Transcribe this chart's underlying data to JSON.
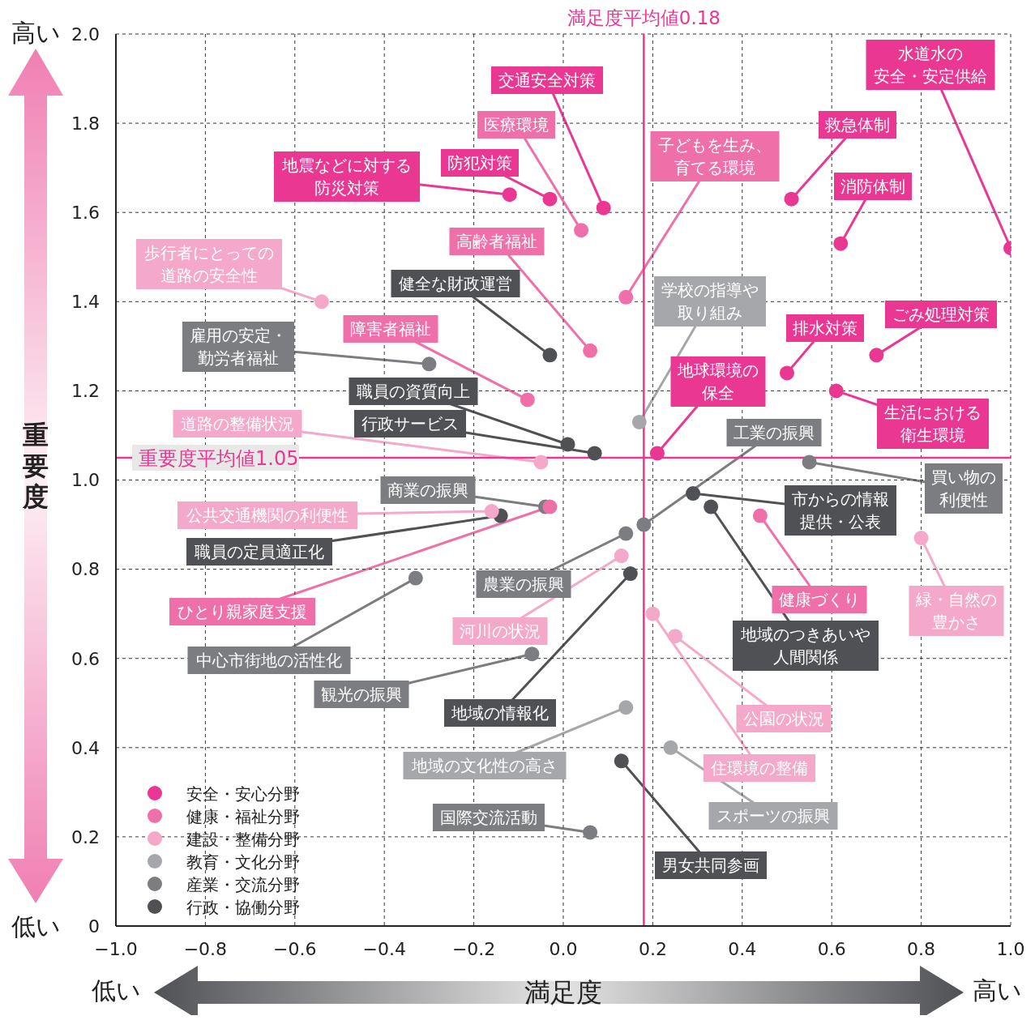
{
  "chart_data": {
    "type": "scatter",
    "xlabel": "満足度",
    "ylabel": "重要度",
    "xlim": [
      -1,
      1
    ],
    "ylim": [
      0,
      2
    ],
    "xticks": [
      {
        "value": -1,
        "label": "−1.0"
      },
      {
        "value": -0.8,
        "label": "−0.8"
      },
      {
        "value": -0.6,
        "label": "−0.6"
      },
      {
        "value": -0.4,
        "label": "−0.4"
      },
      {
        "value": -0.2,
        "label": "−0.2"
      },
      {
        "value": 0,
        "label": "0.0"
      },
      0.2,
      0.4,
      0.6,
      0.8,
      {
        "value": 1,
        "label": "1.0"
      }
    ],
    "yticks": [
      0,
      0.2,
      0.4,
      0.6,
      0.8,
      {
        "value": 1,
        "label": "1.0"
      },
      1.2,
      1.4,
      1.6,
      1.8,
      {
        "value": 2,
        "label": "2.0"
      }
    ],
    "grid": true,
    "legend": "bottom left",
    "marker": "circle",
    "series": [
      {
        "name": "安全・安心分野",
        "color": "#ea3892",
        "x": [
          0.09,
          -0.12,
          -0.03,
          1.0,
          0.51,
          0.62,
          0.5,
          0.7,
          0.21,
          0.61
        ],
        "values": [
          1.61,
          1.64,
          1.63,
          1.52,
          1.63,
          1.53,
          1.24,
          1.28,
          1.06,
          1.2
        ]
      },
      {
        "name": "健康・福祉分野",
        "color": "#ef6fa9",
        "x": [
          0.04,
          0.14,
          0.06,
          -0.08,
          -0.03,
          0.44
        ],
        "values": [
          1.56,
          1.41,
          1.29,
          1.18,
          0.94,
          0.92
        ]
      },
      {
        "name": "建設・整備分野",
        "color": "#f4a8ca",
        "x": [
          -0.54,
          -0.05,
          -0.16,
          0.13,
          0.8,
          0.2,
          0.25
        ],
        "values": [
          1.4,
          1.04,
          0.93,
          0.83,
          0.87,
          0.7,
          0.65
        ]
      },
      {
        "name": "教育・文化分野",
        "color": "#a6a7aa",
        "x": [
          0.17,
          0.14,
          0.24
        ],
        "values": [
          1.13,
          0.49,
          0.4
        ]
      },
      {
        "name": "産業・交流分野",
        "color": "#7c7d81",
        "x": [
          -0.3,
          0.18,
          0.55,
          -0.04,
          0.14,
          -0.33,
          -0.07,
          0.06
        ],
        "values": [
          1.26,
          0.9,
          1.04,
          0.94,
          0.88,
          0.78,
          0.61,
          0.21
        ]
      },
      {
        "name": "行政・協働分野",
        "color": "#505155",
        "x": [
          -0.03,
          0.01,
          0.07,
          -0.14,
          0.29,
          0.33,
          0.15,
          0.13
        ],
        "values": [
          1.28,
          1.08,
          1.06,
          0.92,
          0.97,
          0.94,
          0.79,
          0.37
        ]
      }
    ],
    "ref_lines": [
      {
        "axis": "x",
        "value": 0.18,
        "label": "満足度平均値0.18",
        "color": "#ea3892"
      },
      {
        "axis": "y",
        "value": 1.05,
        "label": "重要度平均値1.05",
        "color": "#ea3892"
      }
    ],
    "annotations": [
      {
        "text": "交通安全対策",
        "x": 0.09,
        "y": 1.61
      },
      {
        "text": "地震などに対する防災対策",
        "x": -0.12,
        "y": 1.64
      },
      {
        "text": "防犯対策",
        "x": -0.03,
        "y": 1.63
      },
      {
        "text": "水道水の安全・安定供給",
        "x": 1.0,
        "y": 1.52
      },
      {
        "text": "救急体制",
        "x": 0.51,
        "y": 1.63
      },
      {
        "text": "消防体制",
        "x": 0.62,
        "y": 1.53
      },
      {
        "text": "排水対策",
        "x": 0.5,
        "y": 1.24
      },
      {
        "text": "ごみ処理対策",
        "x": 0.7,
        "y": 1.28
      },
      {
        "text": "地球環境の保全",
        "x": 0.21,
        "y": 1.06
      },
      {
        "text": "生活における衛生環境",
        "x": 0.61,
        "y": 1.2
      },
      {
        "text": "医療環境",
        "x": 0.04,
        "y": 1.56
      },
      {
        "text": "子どもを生み、育てる環境",
        "x": 0.14,
        "y": 1.41
      },
      {
        "text": "高齢者福祉",
        "x": 0.06,
        "y": 1.29
      },
      {
        "text": "障害者福祉",
        "x": -0.08,
        "y": 1.18
      },
      {
        "text": "ひとり親家庭支援",
        "x": -0.03,
        "y": 0.94
      },
      {
        "text": "健康づくり",
        "x": 0.44,
        "y": 0.92
      },
      {
        "text": "歩行者にとっての道路の安全性",
        "x": -0.54,
        "y": 1.4
      },
      {
        "text": "道路の整備状況",
        "x": -0.05,
        "y": 1.04
      },
      {
        "text": "公共交通機関の利便性",
        "x": -0.16,
        "y": 0.93
      },
      {
        "text": "河川の状況",
        "x": 0.13,
        "y": 0.83
      },
      {
        "text": "緑・自然の豊かさ",
        "x": 0.8,
        "y": 0.87
      },
      {
        "text": "住環境の整備",
        "x": 0.2,
        "y": 0.7
      },
      {
        "text": "公園の状況",
        "x": 0.25,
        "y": 0.65
      },
      {
        "text": "学校の指導や取り組み",
        "x": 0.17,
        "y": 1.13
      },
      {
        "text": "地域の文化性の高さ",
        "x": 0.14,
        "y": 0.49
      },
      {
        "text": "スポーツの振興",
        "x": 0.24,
        "y": 0.4
      },
      {
        "text": "雇用の安定・勤労者福祉",
        "x": -0.3,
        "y": 1.26
      },
      {
        "text": "工業の振興",
        "x": 0.18,
        "y": 0.9
      },
      {
        "text": "買い物の利便性",
        "x": 0.55,
        "y": 1.04
      },
      {
        "text": "商業の振興",
        "x": -0.04,
        "y": 0.94
      },
      {
        "text": "農業の振興",
        "x": 0.14,
        "y": 0.88
      },
      {
        "text": "中心市街地の活性化",
        "x": -0.33,
        "y": 0.78
      },
      {
        "text": "観光の振興",
        "x": -0.07,
        "y": 0.61
      },
      {
        "text": "国際交流活動",
        "x": 0.06,
        "y": 0.21
      },
      {
        "text": "健全な財政運営",
        "x": -0.03,
        "y": 1.28
      },
      {
        "text": "職員の資質向上",
        "x": 0.01,
        "y": 1.08
      },
      {
        "text": "行政サービス",
        "x": 0.07,
        "y": 1.06
      },
      {
        "text": "職員の定員適正化",
        "x": -0.14,
        "y": 0.92
      },
      {
        "text": "市からの情報提供・公表",
        "x": 0.29,
        "y": 0.97
      },
      {
        "text": "地域のつきあいや人間関係",
        "x": 0.33,
        "y": 0.94
      },
      {
        "text": "地域の情報化",
        "x": 0.15,
        "y": 0.79
      },
      {
        "text": "男女共同参画",
        "x": 0.13,
        "y": 0.37
      },
      "高い",
      "低い",
      "低い",
      "高い"
    ]
  }
}
